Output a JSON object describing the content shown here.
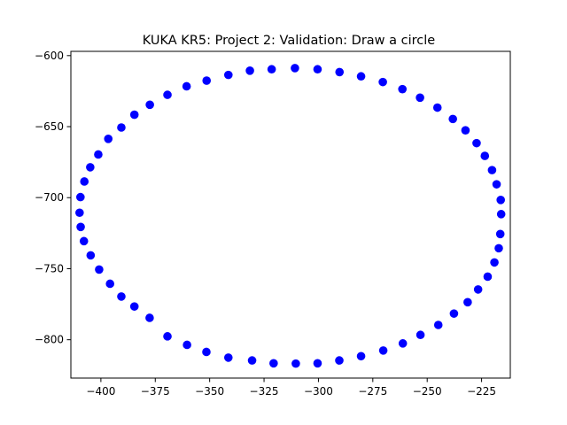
{
  "chart_data": {
    "type": "scatter",
    "title": "KUKA KR5: Project 2: Validation: Draw a circle",
    "xlabel": "",
    "ylabel": "",
    "xlim": [
      -413.8,
      -211.8
    ],
    "ylim": [
      -827,
      -597
    ],
    "xticks": [
      -400,
      -375,
      -350,
      -325,
      -300,
      -275,
      -250,
      -225
    ],
    "yticks": [
      -600,
      -650,
      -700,
      -750,
      -800
    ],
    "grid": false,
    "marker_color": "#0000ff",
    "points": [
      [
        -310.8,
        -608.8
      ],
      [
        -300.4,
        -609.6
      ],
      [
        -290.3,
        -611.6
      ],
      [
        -280.4,
        -614.6
      ],
      [
        -270.4,
        -618.6
      ],
      [
        -261.4,
        -623.6
      ],
      [
        -253.3,
        -629.6
      ],
      [
        -245.3,
        -636.6
      ],
      [
        -238.2,
        -644.6
      ],
      [
        -232.4,
        -652.6
      ],
      [
        -227.3,
        -661.6
      ],
      [
        -223.5,
        -670.6
      ],
      [
        -220.2,
        -680.6
      ],
      [
        -218.1,
        -690.6
      ],
      [
        -216.2,
        -701.6
      ],
      [
        -216.0,
        -711.6
      ],
      [
        -216.4,
        -725.6
      ],
      [
        -217.1,
        -735.6
      ],
      [
        -219.1,
        -745.6
      ],
      [
        -222.2,
        -755.6
      ],
      [
        -226.6,
        -764.6
      ],
      [
        -231.4,
        -773.6
      ],
      [
        -237.7,
        -781.6
      ],
      [
        -244.9,
        -789.6
      ],
      [
        -253.1,
        -796.6
      ],
      [
        -261.2,
        -802.6
      ],
      [
        -270.2,
        -807.6
      ],
      [
        -280.4,
        -811.6
      ],
      [
        -290.4,
        -814.6
      ],
      [
        -300.4,
        -816.6
      ],
      [
        -310.4,
        -816.8
      ],
      [
        -320.6,
        -816.6
      ],
      [
        -330.5,
        -814.6
      ],
      [
        -341.4,
        -812.6
      ],
      [
        -351.5,
        -808.6
      ],
      [
        -360.4,
        -803.6
      ],
      [
        -369.4,
        -797.6
      ],
      [
        -377.6,
        -784.6
      ],
      [
        -384.6,
        -776.6
      ],
      [
        -390.6,
        -769.6
      ],
      [
        -395.8,
        -760.6
      ],
      [
        -400.8,
        -750.6
      ],
      [
        -404.7,
        -740.6
      ],
      [
        -407.8,
        -730.6
      ],
      [
        -409.3,
        -720.6
      ],
      [
        -409.8,
        -710.6
      ],
      [
        -409.4,
        -699.6
      ],
      [
        -407.6,
        -688.6
      ],
      [
        -404.9,
        -678.6
      ],
      [
        -401.2,
        -669.6
      ],
      [
        -396.6,
        -658.6
      ],
      [
        -390.6,
        -650.6
      ],
      [
        -384.6,
        -641.6
      ],
      [
        -377.5,
        -634.6
      ],
      [
        -369.4,
        -627.6
      ],
      [
        -360.6,
        -621.6
      ],
      [
        -351.4,
        -617.6
      ],
      [
        -341.4,
        -613.6
      ],
      [
        -331.5,
        -610.6
      ],
      [
        -321.5,
        -609.6
      ]
    ]
  }
}
